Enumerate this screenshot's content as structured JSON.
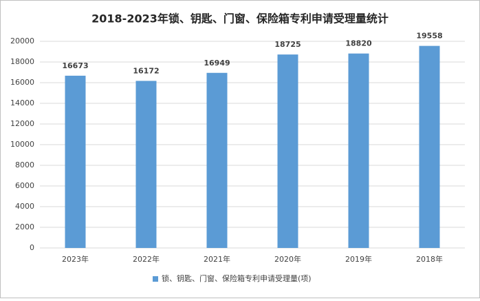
{
  "chart_data": {
    "type": "bar",
    "title": "2018-2023年锁、钥匙、门窗、保险箱专利申请受理量统计",
    "categories": [
      "2023年",
      "2022年",
      "2021年",
      "2020年",
      "2019年",
      "2018年"
    ],
    "series": [
      {
        "name": "锁、钥匙、门窗、保险箱专利申请受理量(项)",
        "color": "#5b9bd5",
        "values": [
          16673,
          16172,
          16949,
          18725,
          18820,
          19558
        ]
      }
    ],
    "ylim": [
      0,
      20000
    ],
    "yticks": [
      0,
      2000,
      4000,
      6000,
      8000,
      10000,
      12000,
      14000,
      16000,
      18000,
      20000
    ],
    "grid": true,
    "legend": "bottom"
  }
}
